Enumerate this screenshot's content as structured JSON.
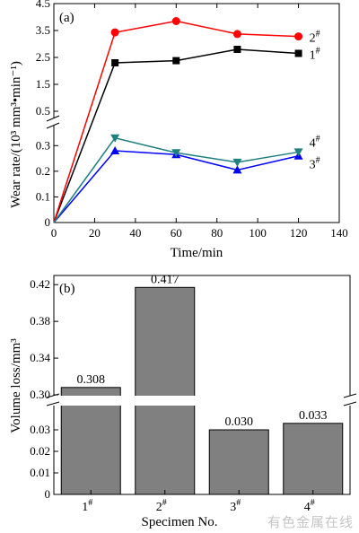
{
  "chart_data": [
    {
      "type": "line",
      "panel_label": "(a)",
      "xlabel": "Time/min",
      "ylabel": "Wear rate/(10³ mm³•min⁻¹)",
      "xlim": [
        0,
        140
      ],
      "xticks": [
        "0",
        "20",
        "40",
        "60",
        "80",
        "100",
        "120",
        "140"
      ],
      "y_axis_break": {
        "lower_range": [
          0,
          0.35
        ],
        "upper_range": [
          0.5,
          4.5
        ]
      },
      "yticks_lower": [
        "0",
        "0.1",
        "0.2",
        "0.3"
      ],
      "yticks_upper": [
        "0.5",
        "1.5",
        "2.5",
        "3.5",
        "4.5"
      ],
      "x": [
        0,
        30,
        60,
        90,
        120
      ],
      "series": [
        {
          "name": "1#",
          "color": "#000000",
          "marker": "square",
          "values": [
            0,
            2.3,
            2.38,
            2.8,
            2.65
          ]
        },
        {
          "name": "2#",
          "color": "#ff0000",
          "marker": "circle",
          "values": [
            0,
            3.43,
            3.85,
            3.37,
            3.28
          ]
        },
        {
          "name": "3#",
          "color": "#0000ff",
          "marker": "triangle-up",
          "values": [
            0,
            0.28,
            0.265,
            0.205,
            0.26
          ]
        },
        {
          "name": "4#",
          "color": "#208080",
          "marker": "triangle-down",
          "values": [
            0,
            0.33,
            0.272,
            0.235,
            0.275
          ]
        }
      ],
      "grid": false
    },
    {
      "type": "bar",
      "panel_label": "(b)",
      "xlabel": "Specimen No.",
      "ylabel": "Volume loss/mm³",
      "categories": [
        "1#",
        "2#",
        "3#",
        "4#"
      ],
      "values": [
        0.308,
        0.417,
        0.03,
        0.033
      ],
      "value_labels": [
        "0.308",
        "0.417",
        "0.030",
        "0.033"
      ],
      "bar_color": "#808080",
      "y_axis_break": {
        "lower_range": [
          0,
          0.04
        ],
        "upper_range": [
          0.3,
          0.43
        ]
      },
      "yticks_lower": [
        "0",
        "0.01",
        "0.02",
        "0.03"
      ],
      "yticks_upper": [
        "0.30",
        "0.34",
        "0.38",
        "0.42"
      ],
      "grid": false
    }
  ],
  "watermark": "有色金属在线"
}
